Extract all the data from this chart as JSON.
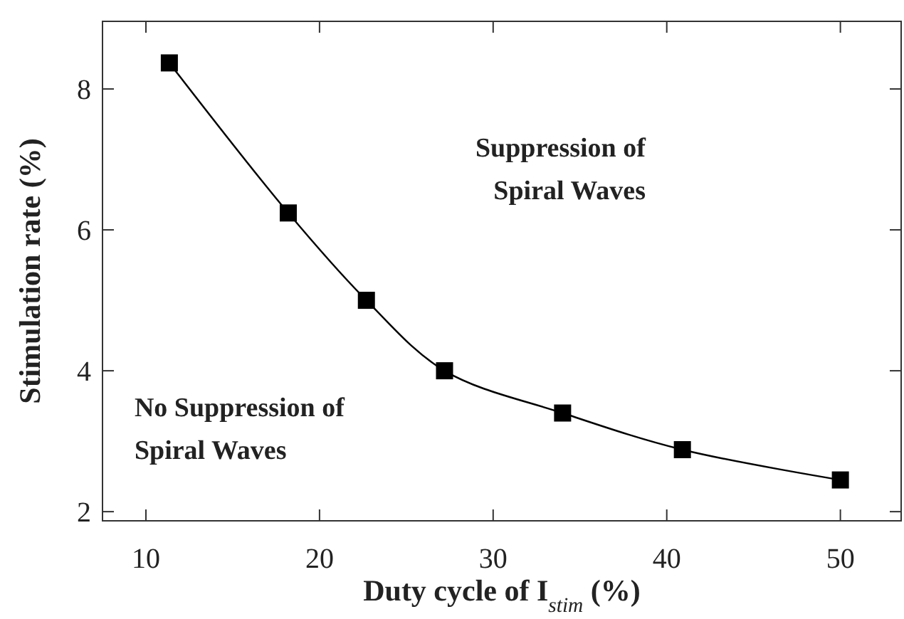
{
  "chart_data": {
    "type": "line",
    "xlabel": "Duty cycle of I$_{stim}$ (%)",
    "ylabel": "Stimulation rate (%)",
    "x": [
      11.35,
      18.2,
      22.7,
      27.2,
      34.0,
      40.9,
      50
    ],
    "series": [
      {
        "color": "#000000",
        "values": [
          8.37,
          6.24,
          5.0,
          4.0,
          3.4,
          2.88,
          2.45
        ]
      }
    ],
    "xlim": [
      7.5,
      53.5
    ],
    "xticks": [
      10,
      20,
      30,
      40,
      50
    ],
    "ylim": [
      1.87,
      8.96
    ],
    "yticks": [
      2,
      4,
      6,
      8
    ],
    "grid": false,
    "marker": "square",
    "line_style": "solid",
    "annotations": [
      "Suppression of\nSpiral Waves",
      "No Suppression of\nSpiral Waves"
    ]
  }
}
